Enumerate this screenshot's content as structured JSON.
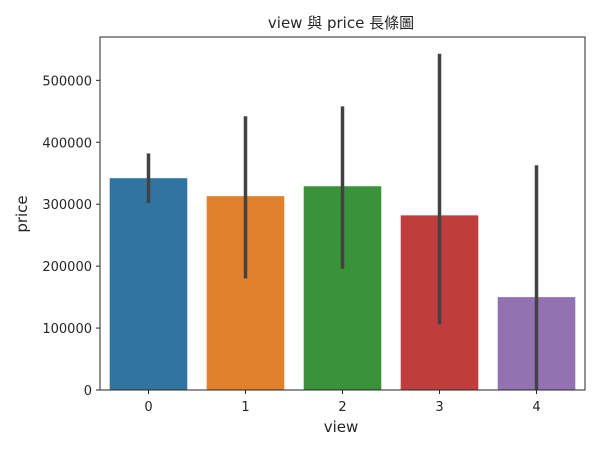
{
  "chart_data": {
    "type": "bar",
    "title": "view 與 price 長條圖",
    "xlabel": "view",
    "ylabel": "price",
    "categories": [
      "0",
      "1",
      "2",
      "3",
      "4"
    ],
    "values": [
      342000,
      313000,
      329000,
      282000,
      150000
    ],
    "error_low": [
      302000,
      180000,
      196000,
      106000,
      0
    ],
    "error_high": [
      382000,
      442000,
      458000,
      543000,
      363000
    ],
    "colors": [
      "#3274a1",
      "#e1812c",
      "#3a923a",
      "#c03d3e",
      "#9372b2"
    ],
    "error_color": "#424242",
    "ylim": [
      0,
      570000
    ],
    "yticks": [
      0,
      100000,
      200000,
      300000,
      400000,
      500000
    ],
    "ytick_labels": [
      "0",
      "100000",
      "200000",
      "300000",
      "400000",
      "500000"
    ],
    "grid": false,
    "legend": "none"
  }
}
